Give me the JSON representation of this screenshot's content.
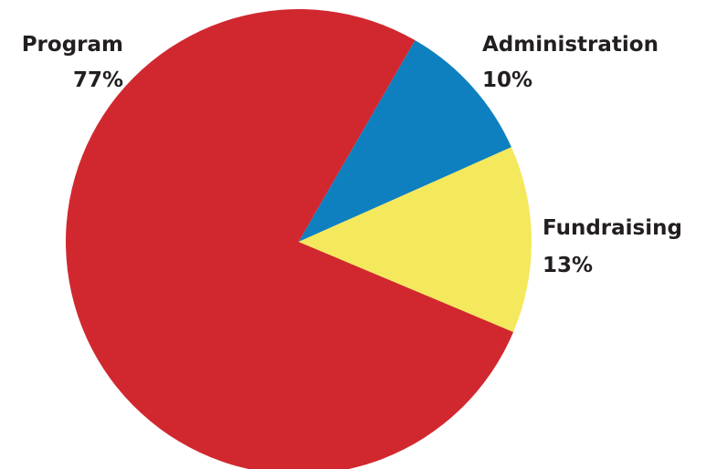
{
  "chart_data": {
    "type": "pie",
    "title": "",
    "slices": [
      {
        "label": "Program",
        "value": 77,
        "value_label": "77%",
        "color": "#d1282f"
      },
      {
        "label": "Administration",
        "value": 10,
        "value_label": "10%",
        "color": "#0e80bf"
      },
      {
        "label": "Fundraising",
        "value": 13,
        "value_label": "13%",
        "color": "#f4e85d"
      }
    ],
    "legend": "none"
  }
}
